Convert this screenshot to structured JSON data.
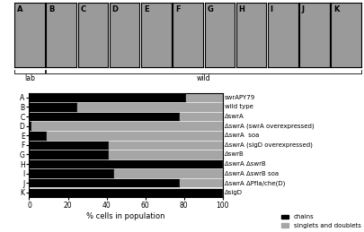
{
  "panels": {
    "labels": [
      "A",
      "B",
      "C",
      "D",
      "E",
      "F",
      "G",
      "H",
      "I",
      "J",
      "K"
    ],
    "groups": [
      {
        "label": "lab",
        "panels": [
          "A"
        ]
      },
      {
        "label": "wild",
        "panels": [
          "B",
          "C",
          "D",
          "E",
          "F",
          "G",
          "H",
          "I",
          "J",
          "K"
        ]
      }
    ]
  },
  "chart_data": {
    "type": "bar",
    "orientation": "horizontal",
    "stacked": true,
    "categories": [
      "A",
      "B",
      "C",
      "D",
      "E",
      "F",
      "G",
      "H",
      "I",
      "J",
      "K"
    ],
    "row_labels": [
      "swrAPY79",
      "wild type",
      "ΔswrA",
      "ΔswrA (swrA overexpressed)",
      "ΔswrA  soa",
      "ΔswrA (sigD overexpressed)",
      "ΔswrB",
      "ΔswrA ΔswrB",
      "ΔswrA ΔswrB soa",
      "ΔswrA ΔPfla/che(D)",
      "ΔsigD"
    ],
    "series": [
      {
        "name": "chains",
        "color": "#000000",
        "values": [
          81,
          25,
          78,
          1,
          9,
          41,
          41,
          100,
          44,
          78,
          100
        ]
      },
      {
        "name": "singlets and doublets",
        "color": "#a6a6a6",
        "values": [
          19,
          75,
          22,
          99,
          91,
          59,
          59,
          0,
          56,
          22,
          0
        ]
      }
    ],
    "x_label": "% cells in population",
    "xlim": [
      0,
      100
    ],
    "xticks": [
      0,
      20,
      40,
      60,
      80,
      100
    ],
    "legend": "lower right",
    "grid": false
  }
}
